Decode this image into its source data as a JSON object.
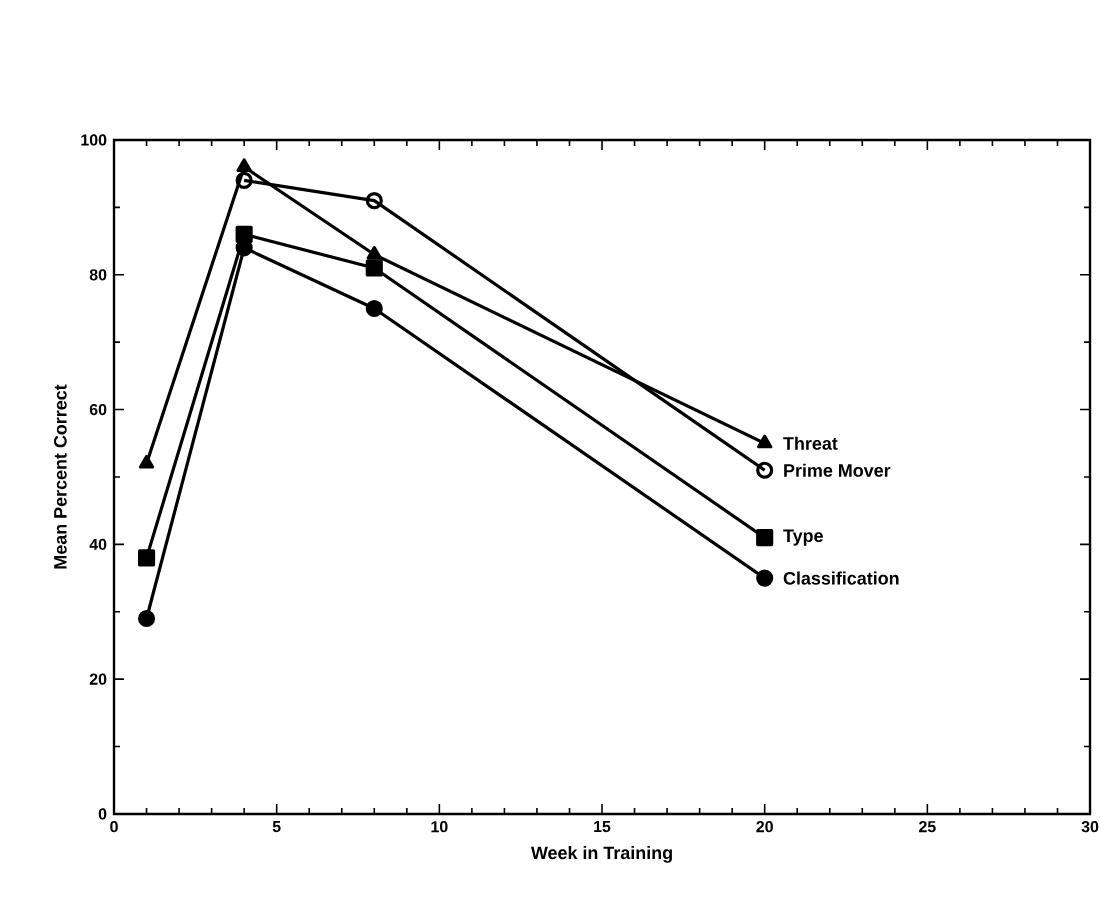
{
  "chart_data": {
    "type": "line",
    "xlabel": "Week in Training",
    "ylabel": "Mean Percent Correct",
    "x": [
      1,
      4,
      8,
      20
    ],
    "series": [
      {
        "name": "Threat",
        "color": "#000000",
        "marker": "triangle",
        "values": [
          52,
          96,
          83,
          55
        ]
      },
      {
        "name": "Prime Mover",
        "color": "#000000",
        "marker": "open circle",
        "values": [
          null,
          94,
          91,
          51
        ]
      },
      {
        "name": "Type",
        "color": "#000000",
        "marker": "square",
        "values": [
          38,
          86,
          81,
          41
        ]
      },
      {
        "name": "Classification",
        "color": "#000000",
        "marker": "circle",
        "values": [
          29,
          84,
          75,
          35
        ]
      }
    ],
    "xlim": [
      0,
      30
    ],
    "xticks": [
      0,
      5,
      10,
      15,
      20,
      25,
      30
    ],
    "ylim": [
      0,
      100
    ],
    "yticks": [
      0,
      20,
      40,
      60,
      80,
      100
    ],
    "grid": false,
    "legend": false,
    "line_style": "solid"
  }
}
